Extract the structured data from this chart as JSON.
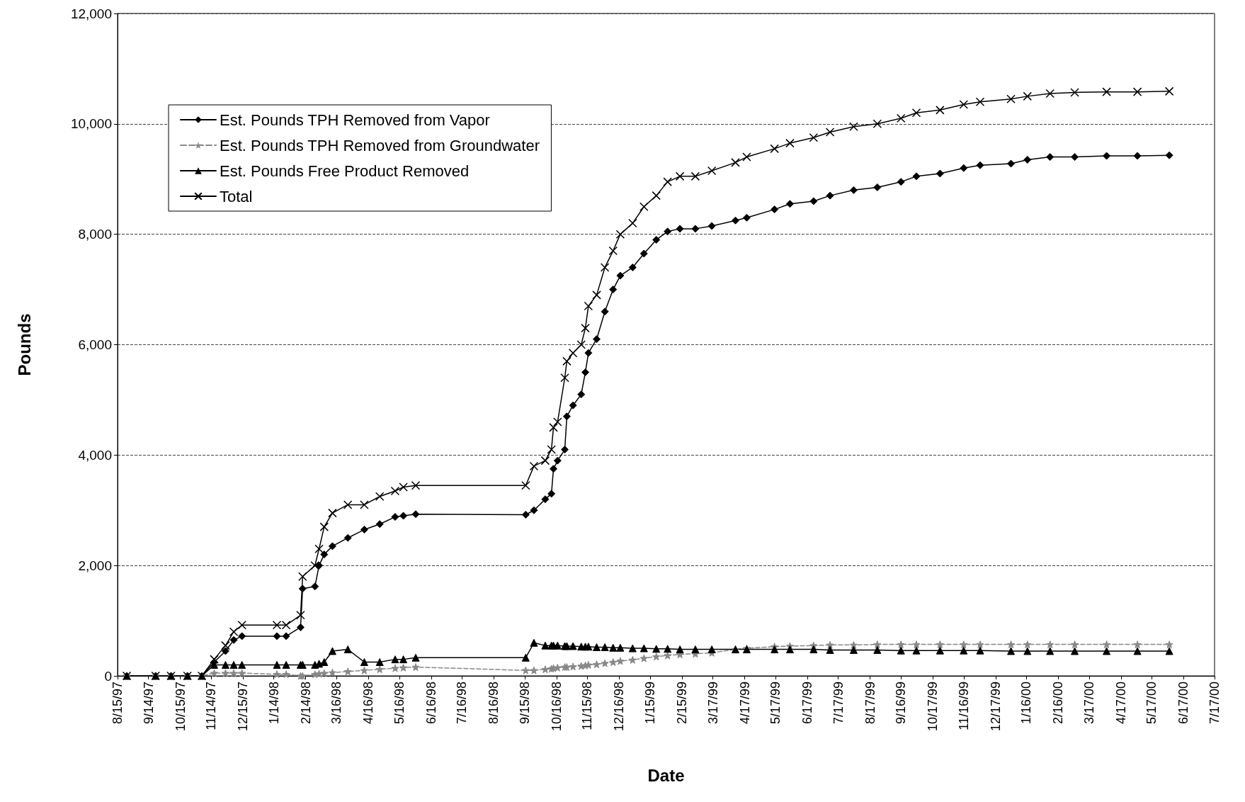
{
  "chart_data": {
    "type": "line",
    "xlabel": "Date",
    "ylabel": "Pounds",
    "x": [
      "1997-08-24",
      "1997-09-21",
      "1997-10-06",
      "1997-10-22",
      "1997-11-05",
      "1997-11-17",
      "1997-11-28",
      "1997-12-06",
      "1997-12-14",
      "1998-01-17",
      "1998-01-26",
      "1998-02-09",
      "1998-02-11",
      "1998-02-23",
      "1998-02-27",
      "1998-03-04",
      "1998-03-12",
      "1998-03-27",
      "1998-04-12",
      "1998-04-27",
      "1998-05-12",
      "1998-05-20",
      "1998-06-01",
      "1998-09-16",
      "1998-09-24",
      "1998-10-05",
      "1998-10-11",
      "1998-10-13",
      "1998-10-17",
      "1998-10-24",
      "1998-10-26",
      "1998-11-01",
      "1998-11-09",
      "1998-11-13",
      "1998-11-16",
      "1998-11-24",
      "1998-12-02",
      "1998-12-10",
      "1998-12-17",
      "1998-12-29",
      "1999-01-09",
      "1999-01-21",
      "1999-02-01",
      "1999-02-13",
      "1999-02-28",
      "1999-03-16",
      "1999-04-08",
      "1999-04-19",
      "1999-05-16",
      "1999-05-31",
      "1999-06-23",
      "1999-07-09",
      "1999-08-01",
      "1999-08-24",
      "1999-09-16",
      "1999-10-01",
      "1999-10-24",
      "1999-11-16",
      "1999-12-02",
      "2000-01-01",
      "2000-01-17",
      "2000-02-08",
      "2000-03-03",
      "2000-04-03",
      "2000-05-03",
      "2000-06-03"
    ],
    "series": [
      {
        "name": "Est. Pounds TPH Removed from Vapor",
        "color": "#000000",
        "marker": "diamond",
        "line_style": "solid",
        "values": [
          0,
          0,
          0,
          0,
          0,
          250,
          450,
          650,
          720,
          720,
          720,
          880,
          1580,
          1620,
          2000,
          2200,
          2350,
          2500,
          2650,
          2750,
          2880,
          2900,
          2930,
          2920,
          3000,
          3200,
          3300,
          3750,
          3900,
          4100,
          4700,
          4900,
          5100,
          5500,
          5850,
          6100,
          6600,
          7000,
          7250,
          7400,
          7650,
          7900,
          8050,
          8100,
          8100,
          8150,
          8250,
          8300,
          8450,
          8550,
          8600,
          8700,
          8800,
          8850,
          8950,
          9050,
          9100,
          9200,
          9250,
          9280,
          9350,
          9400,
          9400,
          9420,
          9420,
          9430
        ]
      },
      {
        "name": "Est. Pounds TPH Removed from Groundwater",
        "color": "#888888",
        "marker": "star",
        "line_style": "dashed",
        "values": [
          0,
          0,
          0,
          0,
          0,
          50,
          50,
          50,
          50,
          30,
          30,
          0,
          0,
          30,
          40,
          50,
          60,
          80,
          100,
          120,
          140,
          150,
          160,
          100,
          100,
          120,
          130,
          140,
          150,
          160,
          160,
          170,
          180,
          190,
          200,
          210,
          230,
          250,
          270,
          290,
          320,
          350,
          370,
          390,
          400,
          420,
          480,
          500,
          530,
          540,
          550,
          560,
          560,
          570,
          570,
          570,
          570,
          570,
          570,
          570,
          570,
          570,
          570,
          570,
          570,
          570
        ]
      },
      {
        "name": "Est. Pounds Free Product Removed",
        "color": "#000000",
        "marker": "triangle",
        "line_style": "solid",
        "values": [
          0,
          0,
          0,
          0,
          0,
          200,
          200,
          200,
          200,
          200,
          200,
          200,
          200,
          200,
          220,
          250,
          450,
          480,
          250,
          250,
          300,
          300,
          330,
          330,
          600,
          550,
          550,
          550,
          550,
          540,
          540,
          540,
          530,
          530,
          530,
          520,
          520,
          510,
          510,
          500,
          500,
          490,
          490,
          480,
          480,
          480,
          480,
          480,
          480,
          480,
          480,
          470,
          470,
          470,
          460,
          460,
          460,
          460,
          460,
          450,
          450,
          450,
          450,
          450,
          450,
          450
        ]
      },
      {
        "name": "Total",
        "color": "#000000",
        "marker": "cross",
        "line_style": "solid",
        "values": [
          0,
          0,
          0,
          0,
          0,
          300,
          550,
          800,
          920,
          920,
          920,
          1100,
          1800,
          2000,
          2300,
          2700,
          2950,
          3100,
          3100,
          3250,
          3350,
          3420,
          3450,
          3450,
          3800,
          3900,
          4100,
          4500,
          4600,
          5400,
          5700,
          5850,
          6000,
          6300,
          6700,
          6900,
          7400,
          7700,
          8000,
          8200,
          8500,
          8700,
          8950,
          9050,
          9050,
          9150,
          9300,
          9400,
          9550,
          9650,
          9750,
          9850,
          9950,
          10000,
          10100,
          10200,
          10250,
          10350,
          10400,
          10450,
          10500,
          10550,
          10570,
          10580,
          10580,
          10590
        ]
      }
    ],
    "xlim": [
      "1997-08-15",
      "2000-07-17"
    ],
    "xticks": [
      {
        "value": "1997-08-15",
        "label": "8/15/97"
      },
      {
        "value": "1997-09-14",
        "label": "9/14/97"
      },
      {
        "value": "1997-10-15",
        "label": "10/15/97"
      },
      {
        "value": "1997-11-14",
        "label": "11/14/97"
      },
      {
        "value": "1997-12-15",
        "label": "12/15/97"
      },
      {
        "value": "1998-01-14",
        "label": "1/14/98"
      },
      {
        "value": "1998-02-14",
        "label": "2/14/98"
      },
      {
        "value": "1998-03-16",
        "label": "3/16/98"
      },
      {
        "value": "1998-04-16",
        "label": "4/16/98"
      },
      {
        "value": "1998-05-16",
        "label": "5/16/98"
      },
      {
        "value": "1998-06-16",
        "label": "6/16/98"
      },
      {
        "value": "1998-07-16",
        "label": "7/16/98"
      },
      {
        "value": "1998-08-16",
        "label": "8/16/98"
      },
      {
        "value": "1998-09-15",
        "label": "9/15/98"
      },
      {
        "value": "1998-10-16",
        "label": "10/16/98"
      },
      {
        "value": "1998-11-15",
        "label": "11/15/98"
      },
      {
        "value": "1998-12-16",
        "label": "12/16/98"
      },
      {
        "value": "1999-01-15",
        "label": "1/15/99"
      },
      {
        "value": "1999-02-15",
        "label": "2/15/99"
      },
      {
        "value": "1999-03-17",
        "label": "3/17/99"
      },
      {
        "value": "1999-04-17",
        "label": "4/17/99"
      },
      {
        "value": "1999-05-17",
        "label": "5/17/99"
      },
      {
        "value": "1999-06-17",
        "label": "6/17/99"
      },
      {
        "value": "1999-07-17",
        "label": "7/17/99"
      },
      {
        "value": "1999-08-17",
        "label": "8/17/99"
      },
      {
        "value": "1999-09-16",
        "label": "9/16/99"
      },
      {
        "value": "1999-10-17",
        "label": "10/17/99"
      },
      {
        "value": "1999-11-16",
        "label": "11/16/99"
      },
      {
        "value": "1999-12-17",
        "label": "12/17/99"
      },
      {
        "value": "2000-01-16",
        "label": "1/16/00"
      },
      {
        "value": "2000-02-16",
        "label": "2/16/00"
      },
      {
        "value": "2000-03-17",
        "label": "3/17/00"
      },
      {
        "value": "2000-04-17",
        "label": "4/17/00"
      },
      {
        "value": "2000-05-17",
        "label": "5/17/00"
      },
      {
        "value": "2000-06-17",
        "label": "6/17/00"
      },
      {
        "value": "2000-07-17",
        "label": "7/17/00"
      }
    ],
    "ylim": [
      0,
      12000
    ],
    "yticks": [
      {
        "value": 0,
        "label": "0"
      },
      {
        "value": 2000,
        "label": "2,000"
      },
      {
        "value": 4000,
        "label": "4,000"
      },
      {
        "value": 6000,
        "label": "6,000"
      },
      {
        "value": 8000,
        "label": "8,000"
      },
      {
        "value": 10000,
        "label": "10,000"
      },
      {
        "value": 12000,
        "label": "12,000"
      }
    ],
    "grid": "y",
    "legend": "top left"
  }
}
